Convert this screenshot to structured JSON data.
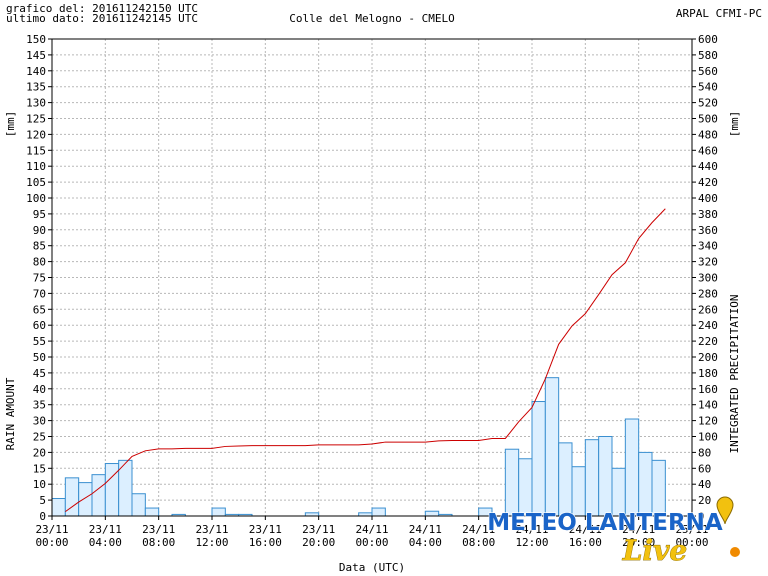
{
  "chart_data": {
    "type": "bar_line",
    "header_left": [
      "grafico del: 201611242150 UTC",
      "ultimo dato: 201611242145 UTC"
    ],
    "title": "Colle del Melogno - CMELO",
    "header_right": "ARPAL CFMI-PC",
    "ylabel": "RAIN AMOUNT",
    "yunit": "[mm]",
    "y2label": "INTEGRATED PRECIPITATION",
    "y2unit": "[mm]",
    "xlabel": "Data (UTC)",
    "watermark": [
      "METEO LANTERNA",
      "Live"
    ],
    "x": [
      "23/11 00:00",
      "23/11 01:00",
      "23/11 02:00",
      "23/11 03:00",
      "23/11 04:00",
      "23/11 05:00",
      "23/11 06:00",
      "23/11 07:00",
      "23/11 08:00",
      "23/11 09:00",
      "23/11 10:00",
      "23/11 11:00",
      "23/11 12:00",
      "23/11 13:00",
      "23/11 14:00",
      "23/11 15:00",
      "23/11 16:00",
      "23/11 17:00",
      "23/11 18:00",
      "23/11 19:00",
      "23/11 20:00",
      "23/11 21:00",
      "23/11 22:00",
      "23/11 23:00",
      "24/11 00:00",
      "24/11 01:00",
      "24/11 02:00",
      "24/11 03:00",
      "24/11 04:00",
      "24/11 05:00",
      "24/11 06:00",
      "24/11 07:00",
      "24/11 08:00",
      "24/11 09:00",
      "24/11 10:00",
      "24/11 11:00",
      "24/11 12:00",
      "24/11 13:00",
      "24/11 14:00",
      "24/11 15:00",
      "24/11 16:00",
      "24/11 17:00",
      "24/11 18:00",
      "24/11 19:00",
      "24/11 20:00",
      "24/11 21:00"
    ],
    "series": [
      {
        "kind": "bar",
        "axis": "y",
        "color": "#3a8fd0",
        "fill": "#dcefff",
        "values": [
          5.5,
          12,
          10.5,
          13,
          16.5,
          17.5,
          7,
          2.5,
          0,
          0.5,
          0,
          0,
          2.5,
          0.5,
          0.5,
          0,
          0,
          0,
          0,
          1,
          0,
          0,
          0,
          1,
          2.5,
          0,
          0,
          0,
          1.5,
          0.5,
          0,
          0,
          2.5,
          0,
          21,
          18,
          36,
          43.5,
          23,
          15.5,
          24,
          25,
          15,
          30.5,
          20,
          17.5
        ]
      },
      {
        "kind": "line",
        "axis": "y2",
        "color": "#cc0000",
        "values": [
          5.5,
          17.5,
          28,
          41,
          57.5,
          75,
          82,
          84.5,
          84.5,
          85,
          85,
          85,
          87.5,
          88,
          88.5,
          88.5,
          88.5,
          88.5,
          88.5,
          89.5,
          89.5,
          89.5,
          89.5,
          90.5,
          93,
          93,
          93,
          93,
          94.5,
          95,
          95,
          95,
          97.5,
          97.5,
          118.5,
          136.5,
          172.5,
          216,
          239,
          254.5,
          278.5,
          303.5,
          318.5,
          349,
          369,
          386.5
        ]
      }
    ],
    "xlim": [
      "23/11 00:00",
      "25/11 00:00"
    ],
    "xticks": [
      "23/11 00:00",
      "23/11 04:00",
      "23/11 08:00",
      "23/11 12:00",
      "23/11 16:00",
      "23/11 20:00",
      "24/11 00:00",
      "24/11 04:00",
      "24/11 08:00",
      "24/11 12:00",
      "24/11 16:00",
      "24/11 20:00",
      "25/11 00:00"
    ],
    "ylim": [
      0,
      150
    ],
    "yticks": [
      0,
      5,
      10,
      15,
      20,
      25,
      30,
      35,
      40,
      45,
      50,
      55,
      60,
      65,
      70,
      75,
      80,
      85,
      90,
      95,
      100,
      105,
      110,
      115,
      120,
      125,
      130,
      135,
      140,
      145,
      150
    ],
    "y2lim": [
      0,
      600
    ],
    "y2ticks": [
      0,
      20,
      40,
      60,
      80,
      100,
      120,
      140,
      160,
      180,
      200,
      220,
      240,
      260,
      280,
      300,
      320,
      340,
      360,
      380,
      400,
      420,
      440,
      460,
      480,
      500,
      520,
      540,
      560,
      580,
      600
    ],
    "grid": true
  }
}
